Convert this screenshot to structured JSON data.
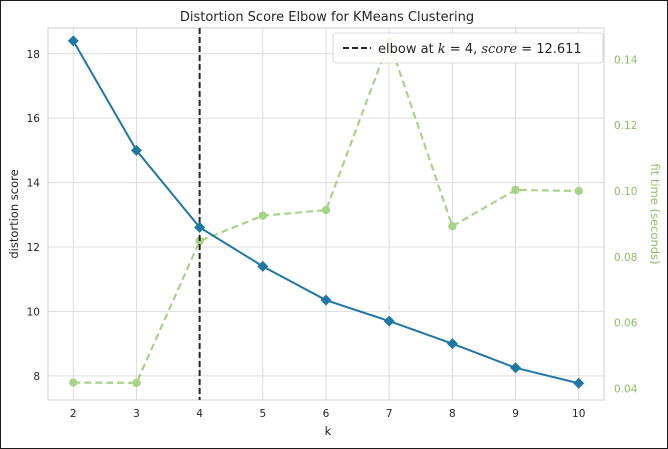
{
  "chart_data": {
    "type": "line",
    "title": "Distortion Score Elbow for KMeans Clustering",
    "xlabel": "k",
    "ylabel": "distortion score",
    "y2label": "fit time (seconds)",
    "x": [
      2,
      3,
      4,
      5,
      6,
      7,
      8,
      9,
      10
    ],
    "xlim": [
      1.6,
      10.4
    ],
    "ylim": [
      7.25,
      18.8
    ],
    "y2lim": [
      0.0365,
      0.1495
    ],
    "yticks": [
      "8",
      "10",
      "12",
      "14",
      "16",
      "18"
    ],
    "y2ticks": [
      "0.04",
      "0.06",
      "0.08",
      "0.10",
      "0.12",
      "0.14"
    ],
    "grid": true,
    "legend_position": "top-right",
    "series": [
      {
        "axis": "left",
        "color": "#1f77a4",
        "marker": "diamond",
        "values": [
          18.4,
          15.0,
          12.611,
          11.4,
          10.35,
          9.7,
          9.0,
          8.25,
          7.77
        ]
      },
      {
        "axis": "right",
        "color": "#aad38a",
        "marker": "circle",
        "dashed": true,
        "values": [
          0.0418,
          0.0417,
          0.0848,
          0.0925,
          0.0942,
          0.1455,
          0.0893,
          0.1003,
          0.1
        ]
      }
    ],
    "elbow": {
      "k": 4,
      "score": 12.611,
      "legend": {
        "prefix": "elbow at ",
        "k_symbol": "k",
        "k_value": " = 4, ",
        "score_symbol": "score",
        "score_value": " = 12.611"
      }
    }
  }
}
